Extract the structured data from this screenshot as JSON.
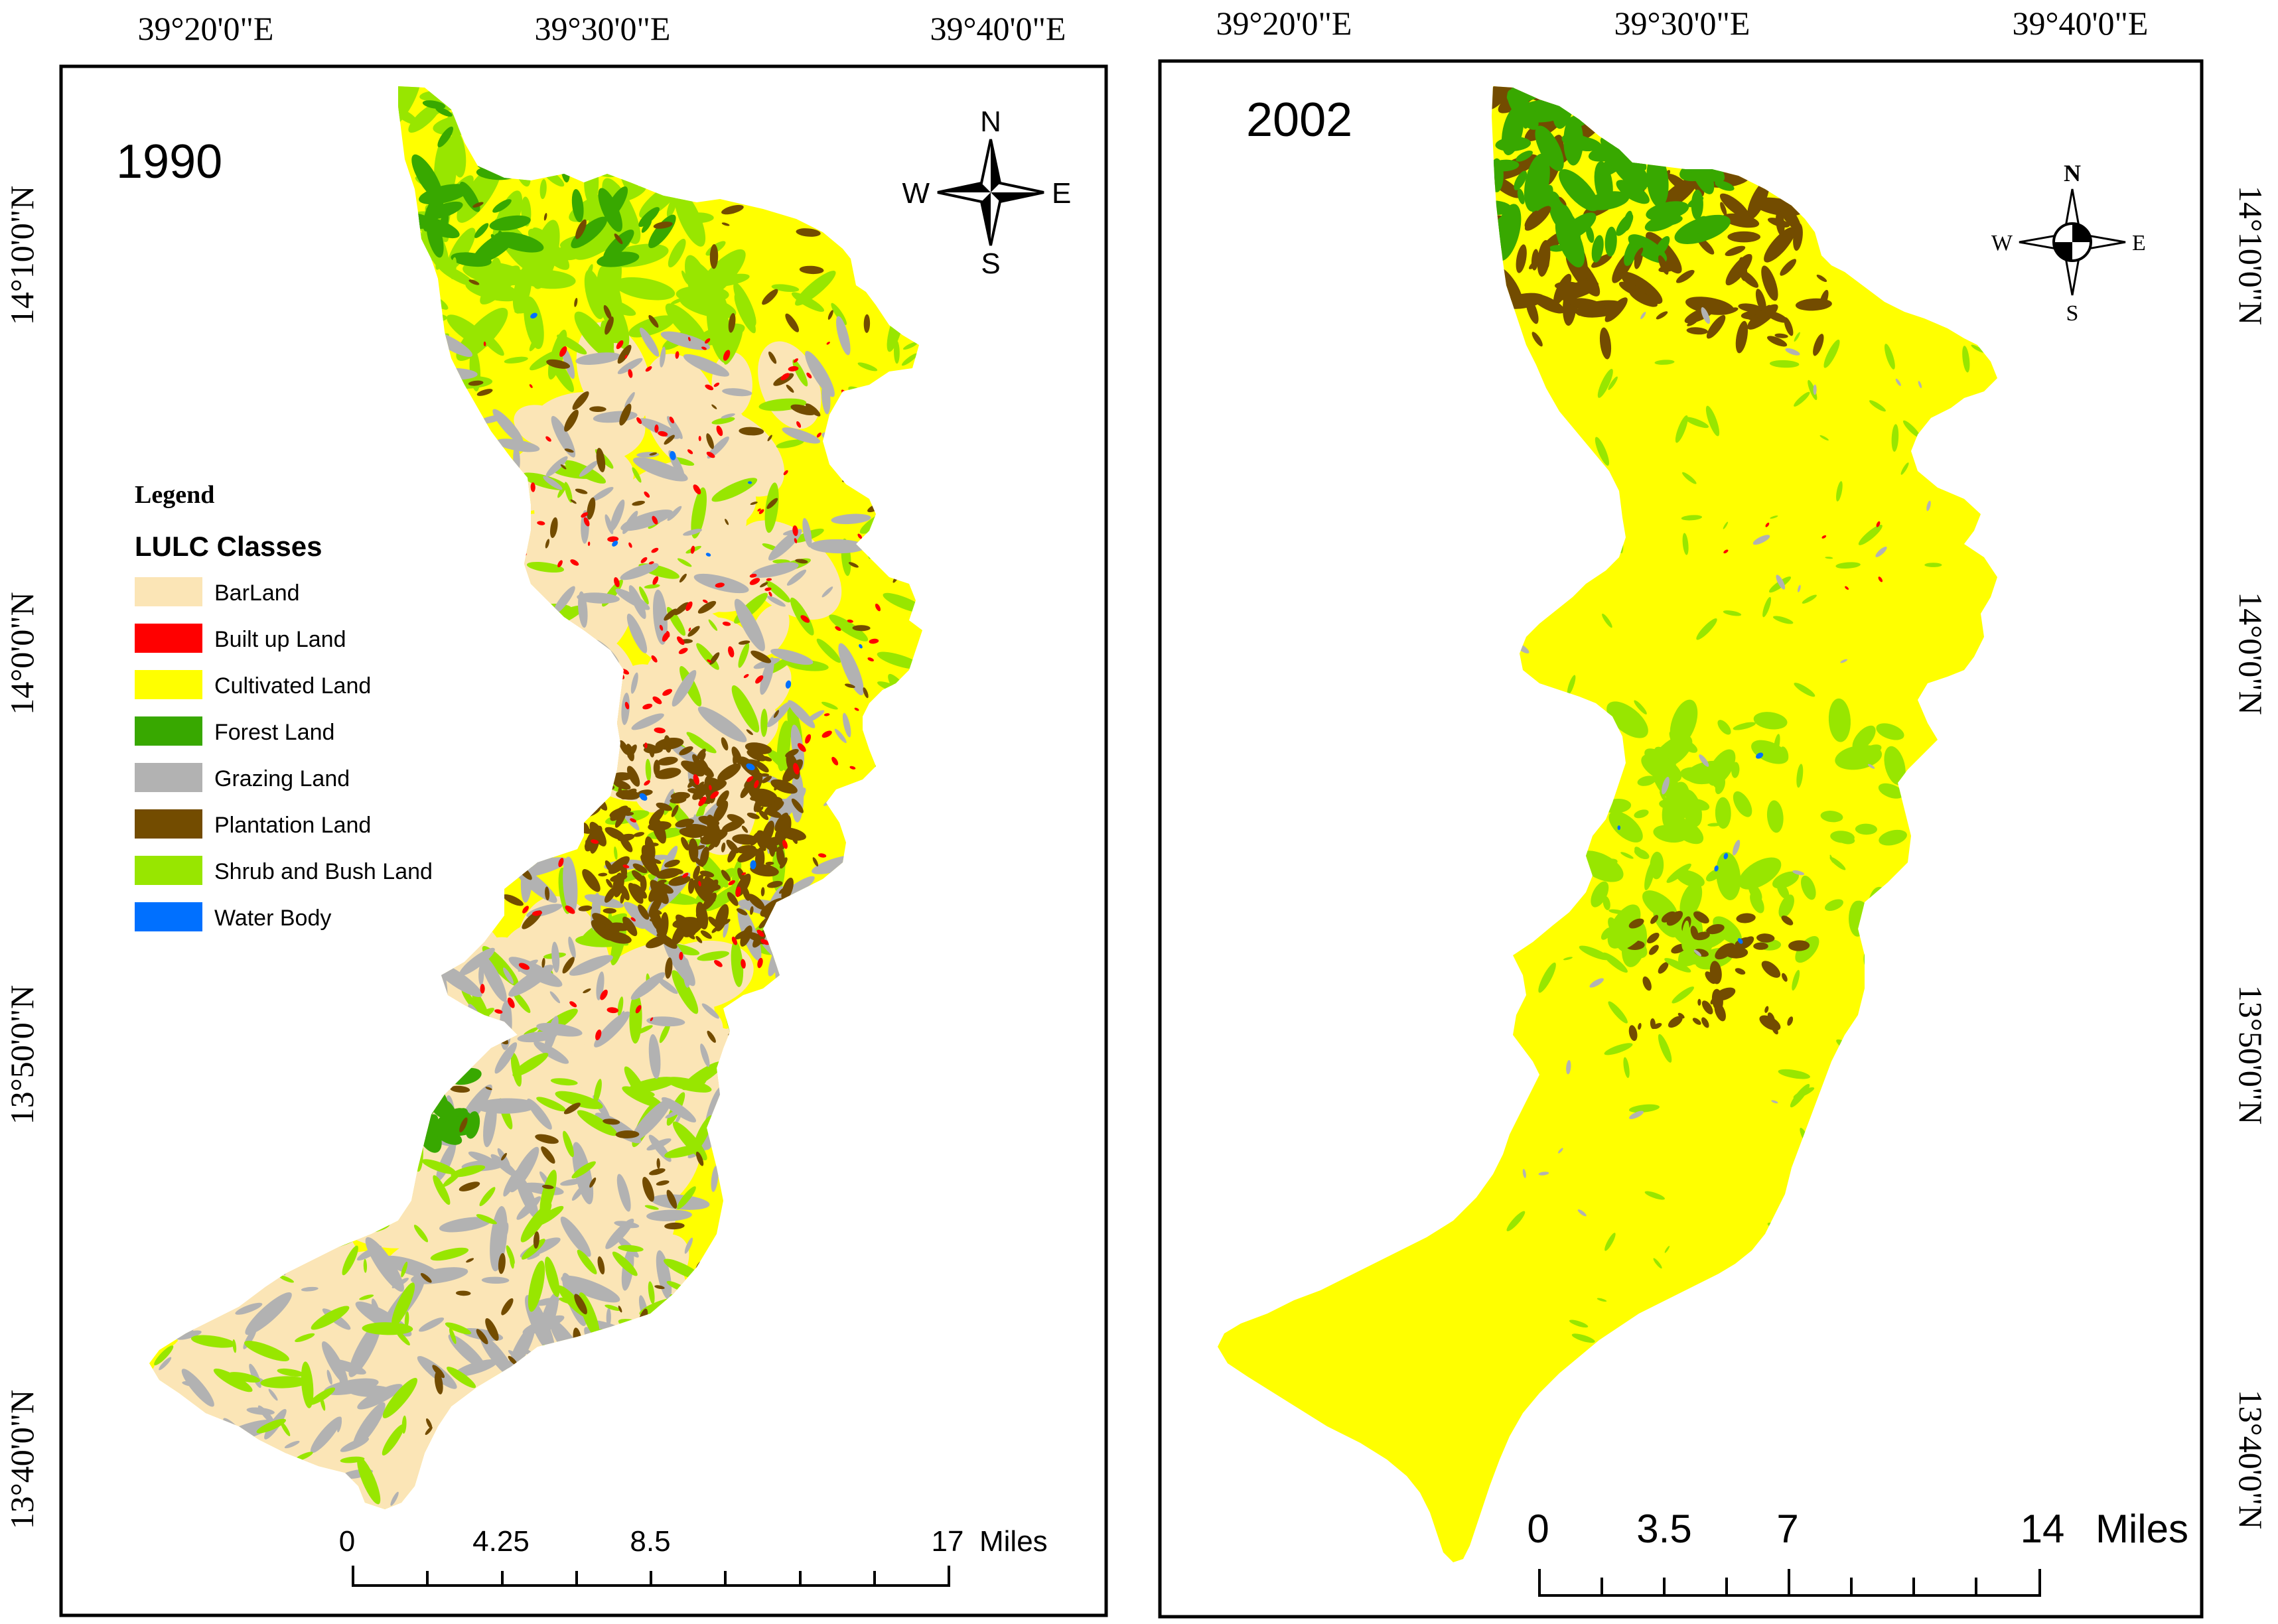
{
  "coords": {
    "left_top": [
      "39°20'0\"E",
      "39°30'0\"E",
      "39°40'0\"E"
    ],
    "right_top": [
      "39°20'0\"E",
      "39°30'0\"E",
      "39°40'0\"E"
    ],
    "left_side": [
      "14°10'0\"N",
      "14°0'0\"N",
      "13°50'0\"N",
      "13°40'0\"N"
    ],
    "right_side": [
      "14°10'0\"N",
      "14°0'0\"N",
      "13°50'0\"N",
      "13°40'0\"N"
    ]
  },
  "panels": [
    {
      "year": "1990",
      "compass": {
        "n": "N",
        "s": "S",
        "e": "E",
        "w": "W"
      },
      "scale": {
        "ticks": [
          "0",
          "4.25",
          "8.5",
          "17"
        ],
        "unit": "Miles"
      }
    },
    {
      "year": "2002",
      "compass": {
        "n": "N",
        "s": "S",
        "e": "E",
        "w": "W"
      },
      "scale": {
        "ticks": [
          "0",
          "3.5",
          "7",
          "14"
        ],
        "unit": "Miles"
      }
    }
  ],
  "legend": {
    "title": "Legend",
    "subtitle": "LULC Classes",
    "items": [
      {
        "label": "BarLand",
        "color": "#fbe5b6"
      },
      {
        "label": "Built up Land",
        "color": "#ff0000"
      },
      {
        "label": "Cultivated Land",
        "color": "#ffff00"
      },
      {
        "label": "Forest Land",
        "color": "#38a800"
      },
      {
        "label": "Grazing Land",
        "color": "#b2b2b2"
      },
      {
        "label": "Plantation Land",
        "color": "#734c00"
      },
      {
        "label": "Shrub and Bush Land",
        "color": "#98e600"
      },
      {
        "label": "Water Body",
        "color": "#0070ff"
      }
    ]
  }
}
